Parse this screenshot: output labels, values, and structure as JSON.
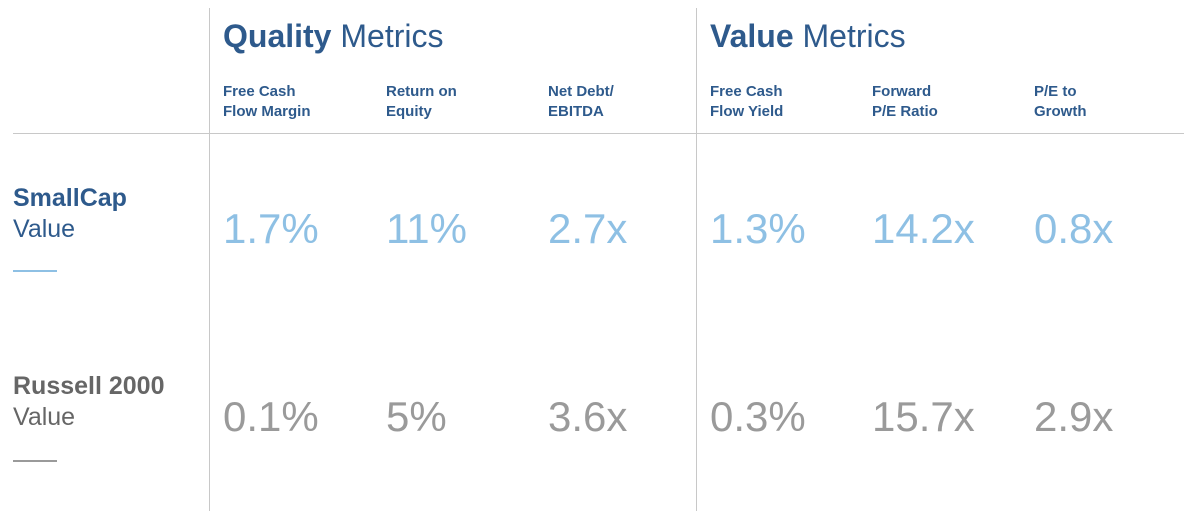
{
  "colors": {
    "heading": "#2e5a8c",
    "smallcap_value": "#8ec0e4",
    "russell_value": "#9a9a9a",
    "russell_label": "#666666",
    "divider": "#c8c8c8"
  },
  "chart_data": {
    "type": "table",
    "groups": [
      {
        "bold": "Quality",
        "rest": " Metrics"
      },
      {
        "bold": "Value",
        "rest": " Metrics"
      }
    ],
    "columns": [
      {
        "line1": "Free Cash",
        "line2": "Flow Margin"
      },
      {
        "line1": "Return on",
        "line2": "Equity"
      },
      {
        "line1": "Net Debt/",
        "line2": "EBITDA"
      },
      {
        "line1": "Free Cash",
        "line2": "Flow Yield"
      },
      {
        "line1": "Forward",
        "line2": "P/E Ratio"
      },
      {
        "line1": "P/E to",
        "line2": "Growth"
      }
    ],
    "rows": [
      {
        "name_bold": "SmallCap",
        "name_rest": "Value",
        "values": [
          "1.7%",
          "11%",
          "2.7x",
          "1.3%",
          "14.2x",
          "0.8x"
        ]
      },
      {
        "name_bold": "Russell 2000",
        "name_rest": "Value",
        "values": [
          "0.1%",
          "5%",
          "3.6x",
          "0.3%",
          "15.7x",
          "2.9x"
        ]
      }
    ]
  }
}
